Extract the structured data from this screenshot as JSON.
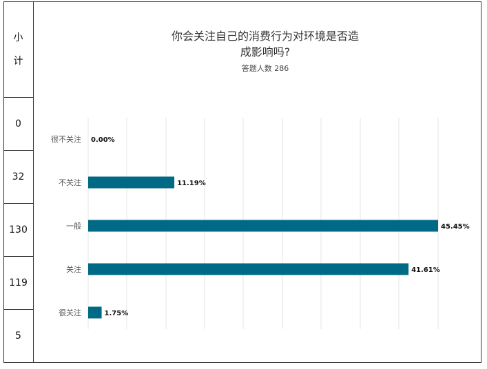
{
  "subtotal": {
    "header": [
      "小",
      "计"
    ],
    "values": [
      "0",
      "32",
      "130",
      "119",
      "5"
    ]
  },
  "chart_data": {
    "type": "bar",
    "orientation": "horizontal",
    "title_lines": [
      "你会关注自己的消费行为对环境是否造",
      "成影响吗?"
    ],
    "subtitle": "答题人数 286",
    "categories": [
      "很不关注",
      "不关注",
      "一般",
      "关注",
      "很关注"
    ],
    "values": [
      0.0,
      11.19,
      45.45,
      41.61,
      1.75
    ],
    "value_labels": [
      "0.00%",
      "11.19%",
      "45.45%",
      "41.61%",
      "1.75%"
    ],
    "xlim": [
      0,
      45.45
    ],
    "grid": true,
    "bar_color": "#006a86",
    "grid_color": "#e6e6e6"
  }
}
